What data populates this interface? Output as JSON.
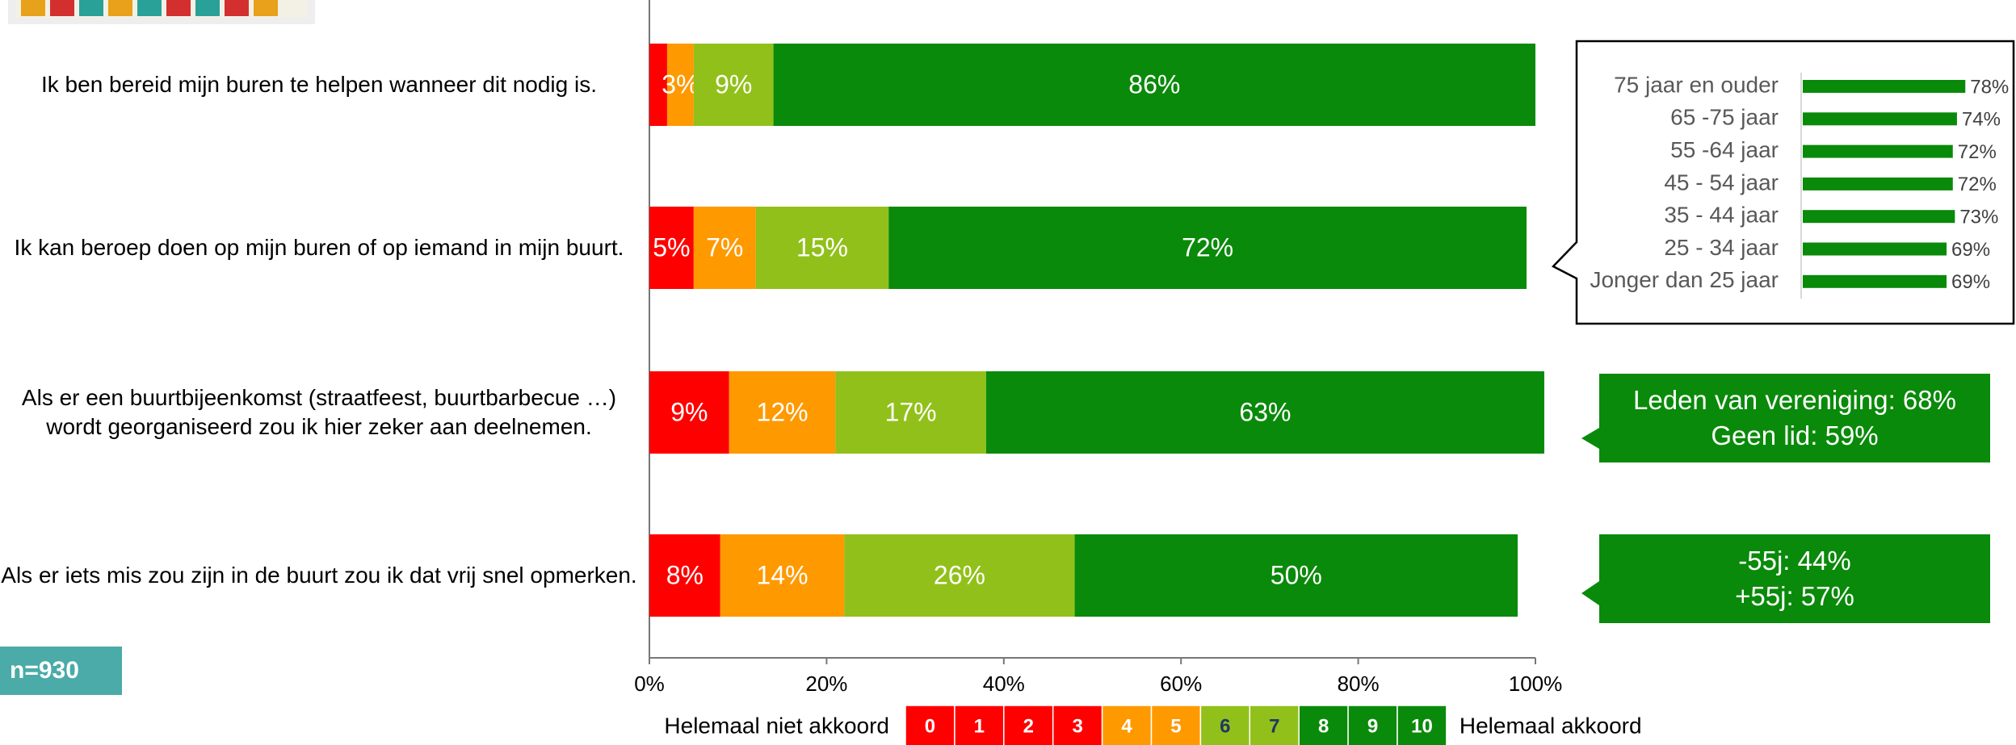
{
  "chart_data": [
    {
      "type": "stacked_barh",
      "categories": [
        "Ik ben bereid mijn buren te helpen wanneer dit nodig is.",
        "Ik kan beroep doen op mijn buren of op iemand in mijn buurt.",
        "Als er een buurtbijeenkomst (straatfeest, buurtbarbecue …) wordt georganiseerd zou ik hier zeker aan deelnemen.",
        "Als er iets mis zou zijn in de buurt zou ik dat vrij snel opmerken."
      ],
      "series": [
        {
          "color": "#ff0000",
          "values": [
            2,
            5,
            9,
            8
          ],
          "value_labels": [
            null,
            "5%",
            "9%",
            "8%"
          ]
        },
        {
          "color": "#ff9900",
          "values": [
            3,
            7,
            12,
            14
          ],
          "value_labels": [
            "3%",
            "7%",
            "12%",
            "14%"
          ]
        },
        {
          "color": "#92c01a",
          "values": [
            9,
            15,
            17,
            26
          ],
          "value_labels": [
            "9%",
            "15%",
            "17%",
            "26%"
          ]
        },
        {
          "color": "#0a8a0a",
          "values": [
            86,
            72,
            63,
            50
          ],
          "value_labels": [
            "86%",
            "72%",
            "63%",
            "50%"
          ]
        }
      ],
      "xlim": [
        0,
        100
      ],
      "xticks": [
        {
          "value": 0,
          "label": "0%"
        },
        {
          "value": 20,
          "label": "20%"
        },
        {
          "value": 40,
          "label": "40%"
        },
        {
          "value": 60,
          "label": "60%"
        },
        {
          "value": 80,
          "label": "80%"
        },
        {
          "value": 100,
          "label": "100%"
        }
      ],
      "legend": {
        "left_label": "Helemaal niet akkoord",
        "right_label": "Helemaal akkoord",
        "scale": [
          {
            "label": "0",
            "color": "#ff0000",
            "text_color": "#ffffff"
          },
          {
            "label": "1",
            "color": "#ff0000",
            "text_color": "#ffffff"
          },
          {
            "label": "2",
            "color": "#ff0000",
            "text_color": "#ffffff"
          },
          {
            "label": "3",
            "color": "#ff0000",
            "text_color": "#ffffff"
          },
          {
            "label": "4",
            "color": "#ff9900",
            "text_color": "#ffffff"
          },
          {
            "label": "5",
            "color": "#ff9900",
            "text_color": "#ffffff"
          },
          {
            "label": "6",
            "color": "#92c01a",
            "text_color": "#1f3864"
          },
          {
            "label": "7",
            "color": "#92c01a",
            "text_color": "#1f3864"
          },
          {
            "label": "8",
            "color": "#0a8a0a",
            "text_color": "#ffffff"
          },
          {
            "label": "9",
            "color": "#0a8a0a",
            "text_color": "#ffffff"
          },
          {
            "label": "10",
            "color": "#0a8a0a",
            "text_color": "#ffffff"
          }
        ]
      }
    },
    {
      "type": "barh",
      "categories": [
        "75 jaar en ouder",
        "65 -75 jaar",
        "55 -64 jaar",
        "45 - 54 jaar",
        "35 - 44 jaar",
        "25 - 34 jaar",
        "Jonger dan 25 jaar"
      ],
      "values": [
        78,
        74,
        72,
        72,
        73,
        69,
        69
      ],
      "value_labels": [
        "78%",
        "74%",
        "72%",
        "72%",
        "73%",
        "69%",
        "69%"
      ],
      "color": "#0a8a0a"
    }
  ],
  "annotations": [
    {
      "lines": [
        "Leden van vereniging: 68%",
        "Geen lid: 59%"
      ]
    },
    {
      "lines": [
        "-55j: 44%",
        "+55j: 57%"
      ]
    }
  ],
  "sample": "n=930"
}
